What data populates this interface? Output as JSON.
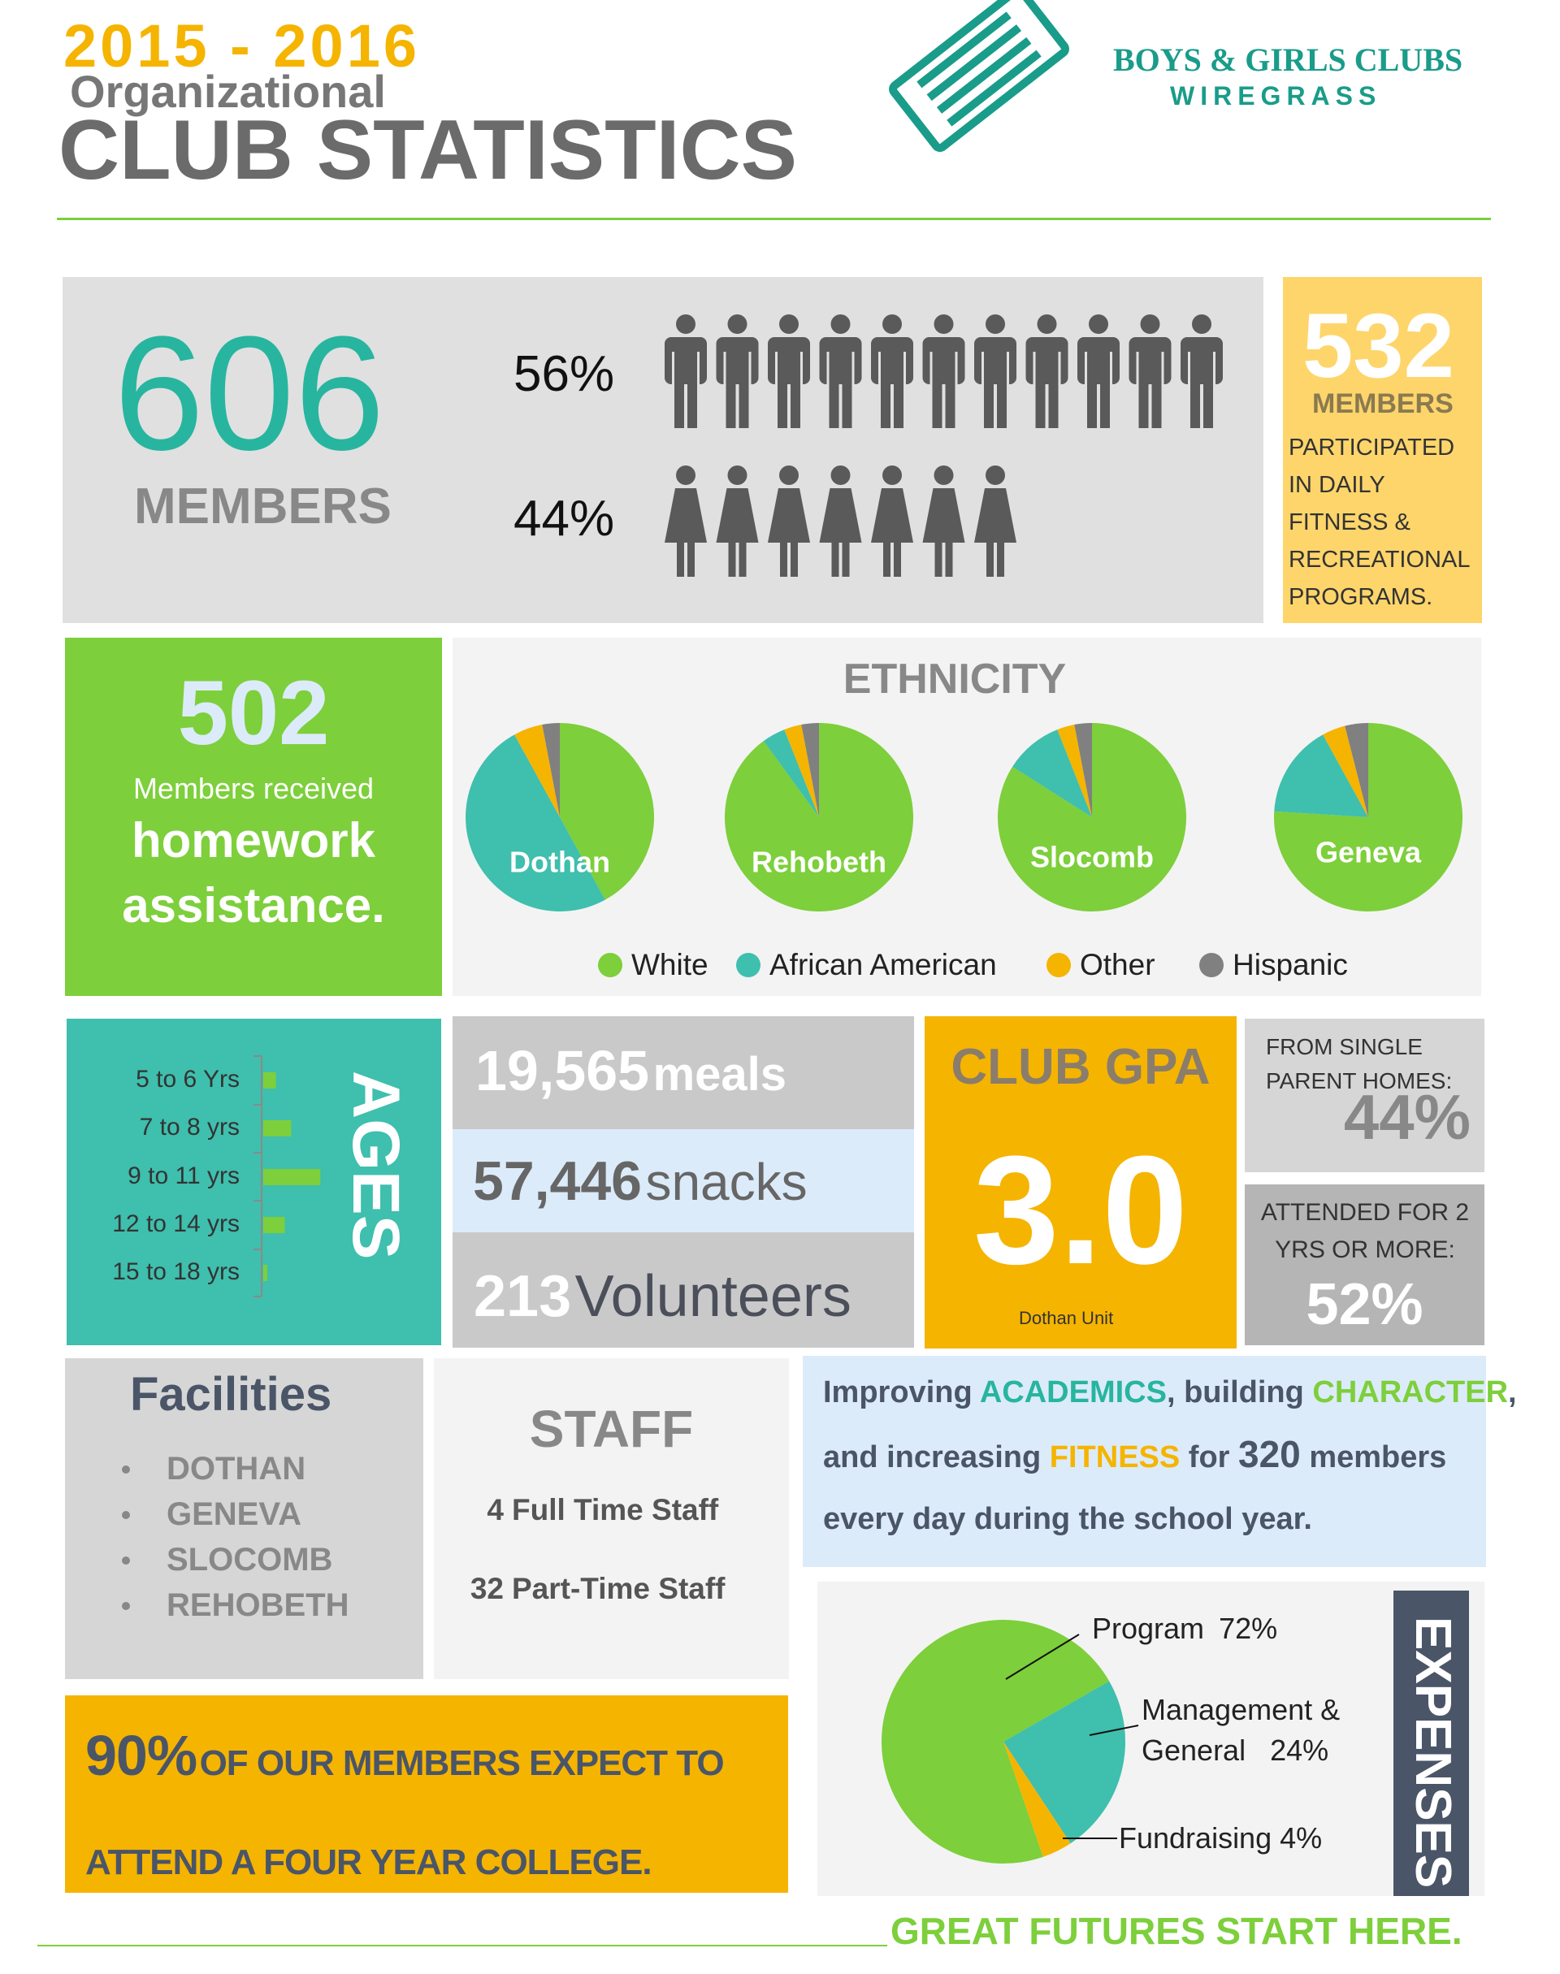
{
  "header": {
    "years": "2015 - 2016",
    "subtitle": "Organizational",
    "title": "CLUB STATISTICS",
    "org_name": "BOYS & GIRLS CLUBS",
    "org_region": "WIREGRASS"
  },
  "members": {
    "total": 606,
    "label": "MEMBERS",
    "male_pct": "56%",
    "female_pct": "44%"
  },
  "fitness": {
    "number": 532,
    "label": "MEMBERS",
    "text": "PARTICIPATED IN DAILY FITNESS & RECREATIONAL PROGRAMS."
  },
  "homework": {
    "number": 502,
    "line1": "Members received",
    "line2": "homework",
    "line3": "assistance."
  },
  "meals": {
    "number": "19,565",
    "label": "meals"
  },
  "snacks": {
    "number": "57,446",
    "label": "snacks"
  },
  "volunteers": {
    "number": 213,
    "label": "Volunteers"
  },
  "gpa": {
    "title": "CLUB GPA",
    "value": "3.0",
    "note": "Dothan Unit"
  },
  "single_parent": {
    "label": "FROM SINGLE PARENT HOMES:",
    "value": "44%"
  },
  "attended": {
    "label": "ATTENDED FOR 2 YRS OR MORE:",
    "value": "52%"
  },
  "facilities": {
    "title": "Facilities",
    "items": [
      "DOTHAN",
      "GENEVA",
      "SLOCOMB",
      "REHOBETH"
    ]
  },
  "staff": {
    "title": "STAFF",
    "items": [
      {
        "count": 4,
        "label": "Full Time Staff"
      },
      {
        "count": 32,
        "label": "Part-Time Staff"
      }
    ]
  },
  "mission": {
    "parts": [
      "Improving",
      "ACADEMICS",
      ", building",
      "CHARACTER",
      ",",
      "and increasing",
      "FITNESS",
      "for",
      "320",
      "members",
      "every day during the school year."
    ]
  },
  "college": {
    "pct": "90%",
    "text": "OF OUR MEMBERS EXPECT TO ATTEND A FOUR YEAR COLLEGE."
  },
  "tagline": "GREAT FUTURES START HERE.",
  "chart_data": [
    {
      "type": "pie",
      "title": "ETHNICITY",
      "categories": [
        "White",
        "African American",
        "Other",
        "Hispanic"
      ],
      "colors": [
        "#7dcf3b",
        "#3fbfad",
        "#f5b400",
        "#808080"
      ],
      "series": [
        {
          "name": "Dothan",
          "values": [
            42,
            50,
            5,
            3
          ]
        },
        {
          "name": "Rehobeth",
          "values": [
            90,
            4,
            3,
            3
          ]
        },
        {
          "name": "Slocomb",
          "values": [
            84,
            10,
            3,
            3
          ]
        },
        {
          "name": "Geneva",
          "values": [
            76,
            16,
            4,
            4
          ]
        }
      ]
    },
    {
      "type": "bar",
      "title": "AGES",
      "categories": [
        "5 to 6 Yrs",
        "7 to 8 yrs",
        "9 to 11 yrs",
        "12 to 14 yrs",
        "15 to 18 yrs"
      ],
      "values": [
        62,
        137,
        281,
        106,
        20
      ],
      "color": "#7dcf3b"
    },
    {
      "type": "pie",
      "title": "EXPENSES",
      "categories": [
        "Program",
        "Management & General",
        "Fundraising"
      ],
      "values": [
        72,
        24,
        4
      ],
      "value_labels": [
        "72%",
        "24%",
        "4%"
      ],
      "colors": [
        "#7dcf3b",
        "#3fbfad",
        "#f5b400"
      ]
    }
  ]
}
